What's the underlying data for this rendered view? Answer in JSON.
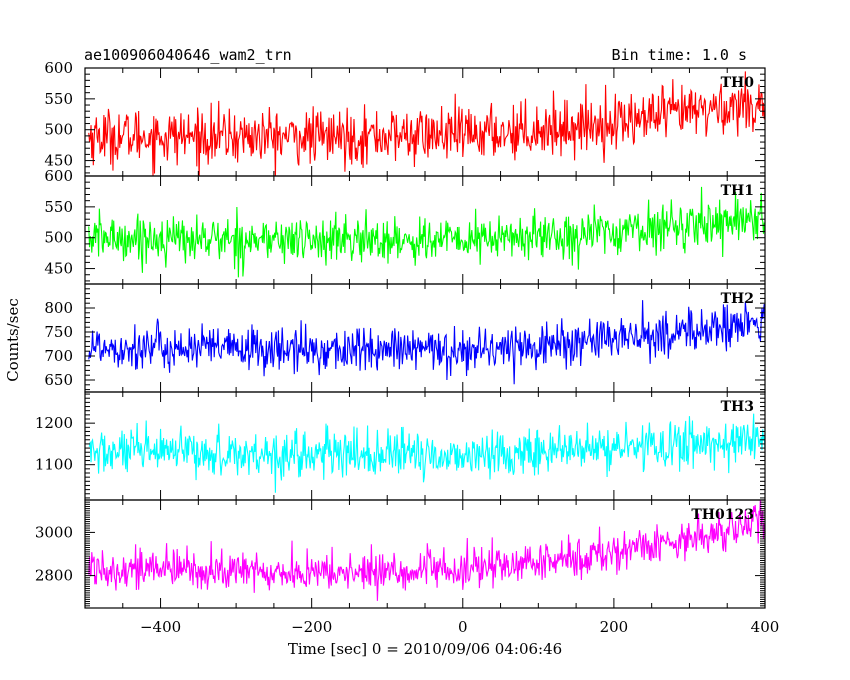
{
  "header": {
    "title": "ae100906040646_wam2_trn",
    "bin_time": "Bin time: 1.0 s"
  },
  "chart_data": {
    "type": "line",
    "title": "ae100906040646_wam2_trn",
    "subtitle": "Bin time: 1.0 s",
    "xlabel": "Time [sec] 0 = 2010/09/06 04:06:46",
    "ylabel": "Counts/sec",
    "xlim": [
      -500,
      400
    ],
    "x_ticks": [
      -400,
      -200,
      0,
      200,
      400
    ],
    "grid": false,
    "panels": [
      {
        "name": "TH0",
        "color": "#ff0000",
        "ylim": [
          425,
          600
        ],
        "y_ticks": [
          450,
          500,
          550,
          600
        ],
        "trend": [
          [
            -500,
            490
          ],
          [
            -200,
            488
          ],
          [
            0,
            492
          ],
          [
            150,
            505
          ],
          [
            250,
            520
          ],
          [
            400,
            545
          ]
        ],
        "noise": 36
      },
      {
        "name": "TH1",
        "color": "#00ff00",
        "ylim": [
          425,
          600
        ],
        "y_ticks": [
          450,
          500,
          550,
          600
        ],
        "trend": [
          [
            -500,
            500
          ],
          [
            -200,
            496
          ],
          [
            0,
            496
          ],
          [
            150,
            505
          ],
          [
            250,
            515
          ],
          [
            400,
            535
          ]
        ],
        "noise": 30
      },
      {
        "name": "TH2",
        "color": "#0000ff",
        "ylim": [
          625,
          850
        ],
        "y_ticks": [
          650,
          700,
          750,
          800
        ],
        "trend": [
          [
            -500,
            720
          ],
          [
            -200,
            712
          ],
          [
            0,
            712
          ],
          [
            150,
            728
          ],
          [
            250,
            742
          ],
          [
            400,
            770
          ]
        ],
        "noise": 38
      },
      {
        "name": "TH3",
        "color": "#00ffff",
        "ylim": [
          1015,
          1275
        ],
        "y_ticks": [
          1100,
          1200
        ],
        "trend": [
          [
            -500,
            1130
          ],
          [
            -200,
            1125
          ],
          [
            0,
            1122
          ],
          [
            150,
            1135
          ],
          [
            250,
            1145
          ],
          [
            400,
            1160
          ]
        ],
        "noise": 45
      },
      {
        "name": "TH0123",
        "color": "#ff00ff",
        "ylim": [
          2650,
          3150
        ],
        "y_ticks": [
          2800,
          3000
        ],
        "trend": [
          [
            -500,
            2840
          ],
          [
            -200,
            2810
          ],
          [
            0,
            2825
          ],
          [
            150,
            2880
          ],
          [
            250,
            2940
          ],
          [
            400,
            3050
          ]
        ],
        "noise": 75
      }
    ]
  }
}
